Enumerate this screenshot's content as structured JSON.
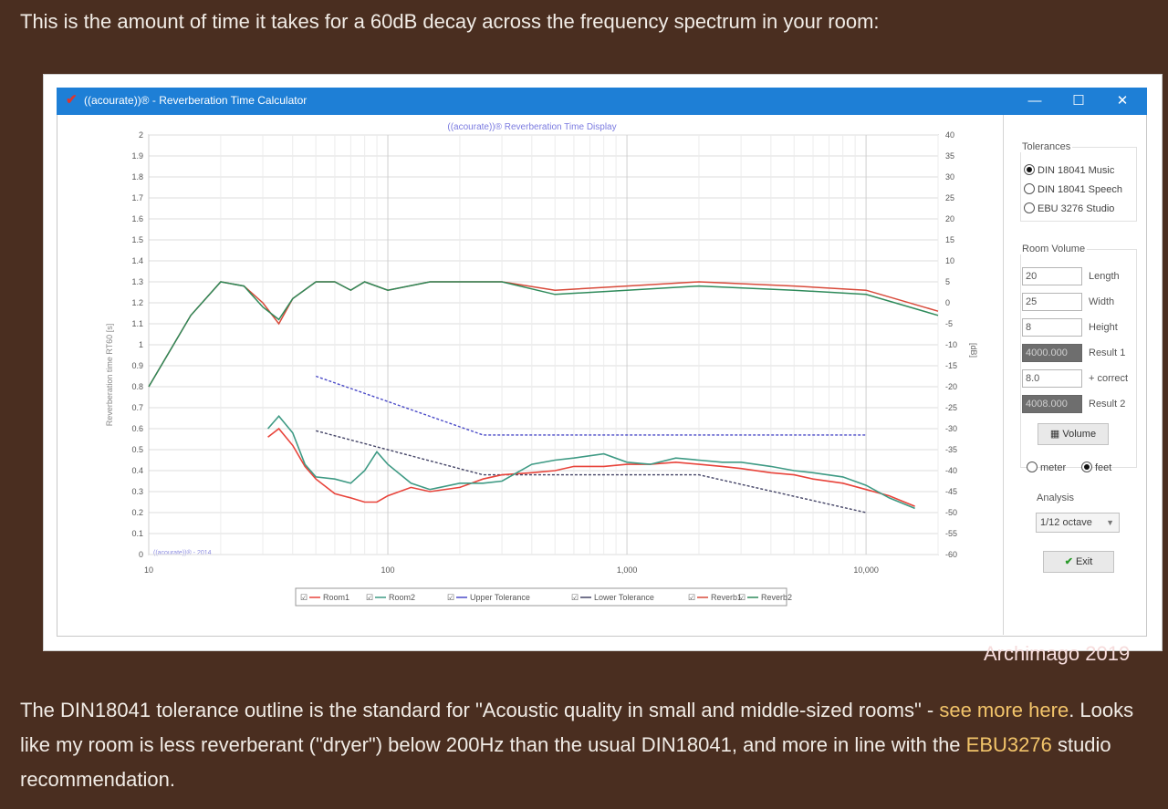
{
  "intro": "This is the amount of time it takes for a 60dB decay across the frequency spectrum in your room:",
  "paragraph": {
    "part1": "The DIN18041 tolerance outline is the standard for \"Acoustic quality in small and middle-sized rooms\" - ",
    "link1": "see more here",
    "part2": ". Looks like my room is less reverberant (\"dryer\") below 200Hz than the usual DIN18041, and more in line with the ",
    "link2": "EBU3276",
    "part3": " studio recommendation."
  },
  "window": {
    "title": "((acourate))® - Reverberation Time Calculator",
    "minimize": "—",
    "maximize": "☐",
    "close": "✕"
  },
  "plot": {
    "title": "((acourate))® Reverberation Time Display",
    "copyright": "((acourate))® - 2014",
    "left_ylabel": "Reverberation time RT60 [s]",
    "right_ylabel": "[dB]",
    "left_ticks": [
      "2",
      "1.9",
      "1.8",
      "1.7",
      "1.6",
      "1.5",
      "1.4",
      "1.3",
      "1.2",
      "1.1",
      "1",
      "0.9",
      "0.8",
      "0.7",
      "0.6",
      "0.5",
      "0.4",
      "0.3",
      "0.2",
      "0.1",
      "0"
    ],
    "right_ticks": [
      "40",
      "35",
      "30",
      "25",
      "20",
      "15",
      "10",
      "5",
      "0",
      "-5",
      "-10",
      "-15",
      "-20",
      "-25",
      "-30",
      "-35",
      "-40",
      "-45",
      "-50",
      "-55",
      "-60"
    ],
    "x_ticks": [
      "10",
      "100",
      "1,000",
      "10,000"
    ]
  },
  "legend": [
    {
      "label": "Room1",
      "color": "#e8433a"
    },
    {
      "label": "Room2",
      "color": "#3e9a84"
    },
    {
      "label": "Upper Tolerance",
      "color": "#4b4bc8"
    },
    {
      "label": "Lower Tolerance",
      "color": "#444466"
    },
    {
      "label": "Reverb1",
      "color": "#d84a3a"
    },
    {
      "label": "Reverb2",
      "color": "#2e8a5a"
    }
  ],
  "legend_check": "☑",
  "panel": {
    "tolerances_label": "Tolerances",
    "tolerances": [
      "DIN 18041 Music",
      "DIN 18041 Speech",
      "EBU 3276 Studio"
    ],
    "tolerance_selected": "DIN 18041 Music",
    "room_volume_label": "Room Volume",
    "length": "20",
    "length_label": "Length",
    "width": "25",
    "width_label": "Width",
    "height": "8",
    "height_label": "Height",
    "result1": "4000.000",
    "result1_label": "Result 1",
    "correct": "8.0",
    "correct_label": "+ correct",
    "result2": "4008.000",
    "result2_label": "Result 2",
    "volume_button": "Volume",
    "units": [
      "meter",
      "feet"
    ],
    "unit_selected": "feet",
    "analysis_label": "Analysis",
    "analysis_value": "1/12 octave",
    "exit_button": "Exit"
  },
  "watermark": "Archimago 2019",
  "chart_data": {
    "type": "line",
    "title": "((acourate))® Reverberation Time Display",
    "xlabel": "",
    "ylabel": "Reverberation time RT60 [s]",
    "y2label": "[dB]",
    "xscale": "log",
    "xlim": [
      10,
      20000
    ],
    "ylim": [
      0,
      2
    ],
    "y2lim": [
      -60,
      40
    ],
    "grid": true,
    "legend_position": "bottom",
    "series": [
      {
        "name": "Room1",
        "axis": "left",
        "x": [
          31.5,
          35,
          40,
          45,
          50,
          60,
          70,
          80,
          90,
          100,
          125,
          150,
          200,
          250,
          300,
          400,
          500,
          600,
          800,
          1000,
          1250,
          1600,
          2000,
          2500,
          3000,
          4000,
          5000,
          6000,
          8000,
          10000,
          12500,
          16000
        ],
        "y": [
          0.56,
          0.6,
          0.52,
          0.42,
          0.36,
          0.29,
          0.27,
          0.25,
          0.25,
          0.28,
          0.32,
          0.3,
          0.32,
          0.36,
          0.38,
          0.39,
          0.4,
          0.42,
          0.42,
          0.43,
          0.43,
          0.44,
          0.43,
          0.42,
          0.41,
          0.39,
          0.38,
          0.36,
          0.34,
          0.31,
          0.28,
          0.23
        ]
      },
      {
        "name": "Room2",
        "axis": "left",
        "x": [
          31.5,
          35,
          40,
          45,
          50,
          60,
          70,
          80,
          90,
          100,
          125,
          150,
          200,
          250,
          300,
          400,
          500,
          600,
          800,
          1000,
          1250,
          1600,
          2000,
          2500,
          3000,
          4000,
          5000,
          6000,
          8000,
          10000,
          12500,
          16000
        ],
        "y": [
          0.6,
          0.66,
          0.58,
          0.43,
          0.37,
          0.36,
          0.34,
          0.4,
          0.49,
          0.43,
          0.34,
          0.31,
          0.34,
          0.34,
          0.35,
          0.43,
          0.45,
          0.46,
          0.48,
          0.44,
          0.43,
          0.46,
          0.45,
          0.44,
          0.44,
          0.42,
          0.4,
          0.39,
          0.37,
          0.33,
          0.27,
          0.22
        ]
      },
      {
        "name": "Upper Tolerance",
        "axis": "left",
        "x": [
          50,
          250,
          10000
        ],
        "y": [
          0.85,
          0.57,
          0.57
        ]
      },
      {
        "name": "Lower Tolerance",
        "axis": "left",
        "x": [
          50,
          250,
          2000,
          10000
        ],
        "y": [
          0.59,
          0.38,
          0.38,
          0.2
        ]
      },
      {
        "name": "Reverb1",
        "axis": "right",
        "x": [
          10,
          15,
          20,
          25,
          30,
          35,
          40,
          50,
          60,
          70,
          80,
          100,
          150,
          200,
          300,
          500,
          1000,
          2000,
          5000,
          10000,
          20000
        ],
        "y": [
          -20,
          -3,
          5,
          4,
          0,
          -5,
          1,
          5,
          5,
          3,
          5,
          3,
          5,
          5,
          5,
          3,
          4,
          5,
          4,
          3,
          -2
        ]
      },
      {
        "name": "Reverb2",
        "axis": "right",
        "x": [
          10,
          15,
          20,
          25,
          30,
          35,
          40,
          50,
          60,
          70,
          80,
          100,
          150,
          200,
          300,
          500,
          1000,
          2000,
          5000,
          10000,
          20000
        ],
        "y": [
          -20,
          -3,
          5,
          4,
          -1,
          -4,
          1,
          5,
          5,
          3,
          5,
          3,
          5,
          5,
          5,
          2,
          3,
          4,
          3,
          2,
          -3
        ]
      }
    ]
  }
}
